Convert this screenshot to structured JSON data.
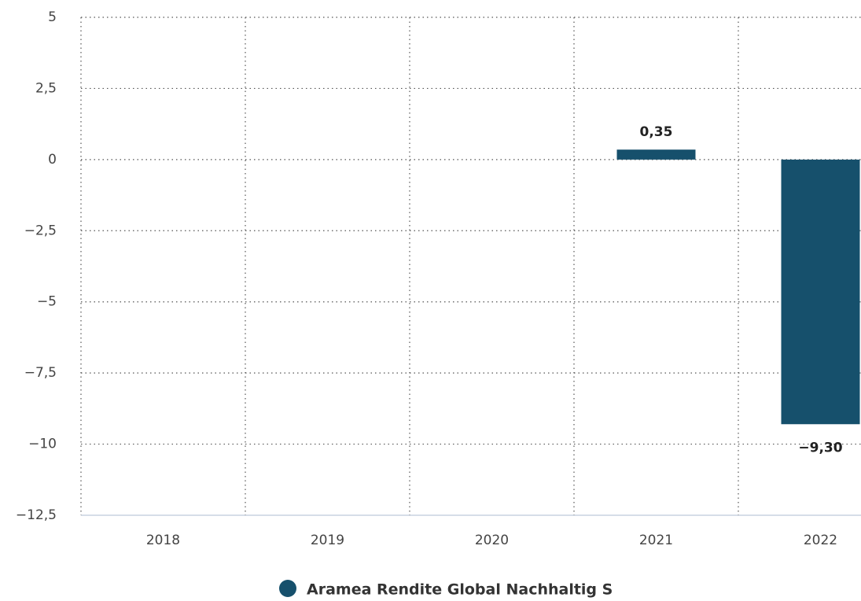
{
  "chart_data": {
    "type": "bar",
    "categories": [
      "2018",
      "2019",
      "2020",
      "2021",
      "2022"
    ],
    "series": [
      {
        "name": "Aramea Rendite Global Nachhaltig S",
        "color": "#16506c",
        "values": [
          null,
          null,
          null,
          0.35,
          -9.3
        ],
        "value_labels": [
          null,
          null,
          null,
          "0,35",
          "−9,30"
        ]
      }
    ],
    "ylim": [
      -12.5,
      5
    ],
    "yticks": [
      5,
      {
        "value": 2.5,
        "label": "2,5"
      },
      0,
      {
        "value": -2.5,
        "label": "−2,5"
      },
      {
        "value": -5,
        "label": "−5"
      },
      {
        "value": -7.5,
        "label": "−7,5"
      },
      {
        "value": -10,
        "label": "−10"
      },
      {
        "value": -12.5,
        "label": "−12,5"
      }
    ],
    "grid": true,
    "legend": "bottom"
  }
}
